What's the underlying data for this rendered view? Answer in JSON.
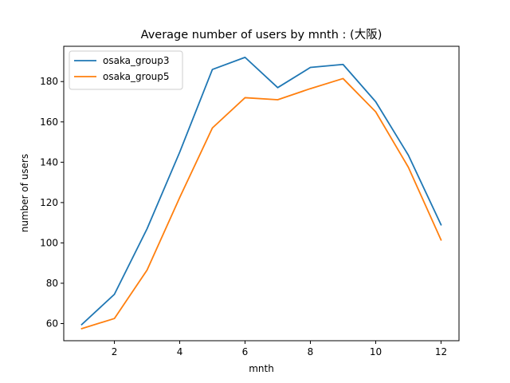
{
  "chart_data": {
    "type": "line",
    "title": "Average number of users by mnth : (大阪)",
    "xlabel": "mnth",
    "ylabel": "number of users",
    "x": [
      1,
      2,
      3,
      4,
      5,
      6,
      7,
      8,
      9,
      10,
      11,
      12
    ],
    "xlim": [
      0.45,
      12.55
    ],
    "ylim": [
      51.5,
      197.5
    ],
    "xticks": [
      2,
      4,
      6,
      8,
      10,
      12
    ],
    "yticks": [
      60,
      80,
      100,
      120,
      140,
      160,
      180
    ],
    "grid": false,
    "legend_position": "upper-left",
    "series": [
      {
        "name": "osaka_group3",
        "color": "#1f77b4",
        "values": [
          59.5,
          74.5,
          107.0,
          145.0,
          186.0,
          192.0,
          177.0,
          187.0,
          188.5,
          170.0,
          143.5,
          109.0
        ]
      },
      {
        "name": "osaka_group5",
        "color": "#ff7f0e",
        "values": [
          57.5,
          62.5,
          86.5,
          122.5,
          157.0,
          172.0,
          171.0,
          176.5,
          181.5,
          165.0,
          137.5,
          101.5
        ]
      }
    ]
  }
}
